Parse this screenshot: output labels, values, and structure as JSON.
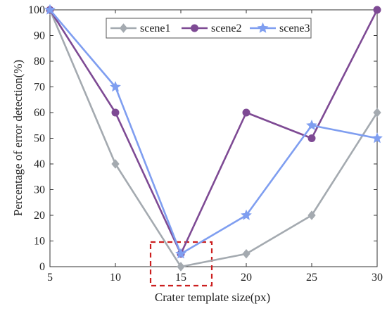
{
  "chart_data": {
    "type": "line",
    "title": "",
    "xlabel": "Crater template size(px)",
    "ylabel": "Percentage of error detection(%)",
    "x": [
      5,
      10,
      15,
      20,
      25,
      30
    ],
    "xlim": [
      5,
      30
    ],
    "ylim": [
      0,
      100
    ],
    "xticks": [
      "5",
      "10",
      "15",
      "20",
      "25",
      "30"
    ],
    "yticks": [
      "0",
      "10",
      "20",
      "30",
      "40",
      "50",
      "60",
      "70",
      "80",
      "90",
      "100"
    ],
    "grid": false,
    "legend_position": "top-center",
    "series": [
      {
        "name": "scene1",
        "values": [
          100,
          40,
          0,
          5,
          20,
          60
        ],
        "color": "#a4aab0",
        "marker": "diamond"
      },
      {
        "name": "scene2",
        "values": [
          100,
          60,
          5,
          60,
          50,
          100
        ],
        "color": "#7e4a94",
        "marker": "circle"
      },
      {
        "name": "scene3",
        "values": [
          100,
          70,
          5,
          20,
          55,
          50
        ],
        "color": "#7f9ef0",
        "marker": "star"
      }
    ],
    "highlight": {
      "shape": "dashed-rectangle",
      "color": "#cc1f1f",
      "around_x": 15
    }
  }
}
